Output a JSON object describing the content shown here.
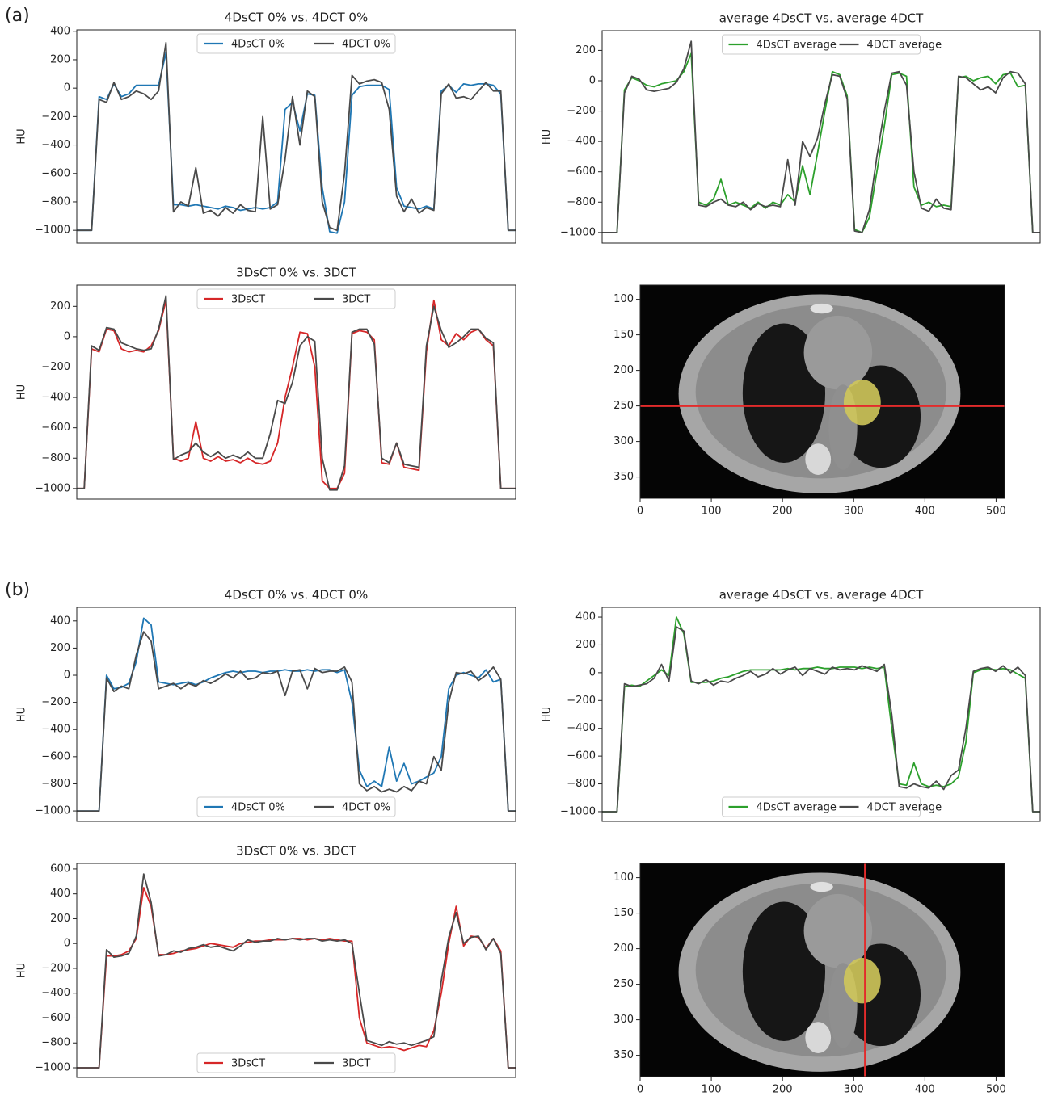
{
  "panels": [
    "(a)",
    "(b)"
  ],
  "chart_data": [
    {
      "type": "line",
      "title": "4DsCT 0% vs. 4DCT 0%",
      "ylabel": "HU",
      "legend": "upper center",
      "ylim": [
        -1090,
        410
      ],
      "yticks": [
        {
          "value": -1000,
          "label": "−1000"
        },
        {
          "value": -800,
          "label": "−800"
        },
        {
          "value": -600,
          "label": "−600"
        },
        {
          "value": -400,
          "label": "−400"
        },
        {
          "value": -200,
          "label": "−200"
        },
        0,
        200,
        400
      ],
      "series": [
        {
          "name": "4DsCT 0%",
          "color": "#1f77b4",
          "values": [
            -1000,
            -1000,
            -1000,
            -60,
            -80,
            30,
            -60,
            -40,
            20,
            20,
            20,
            20,
            250,
            -820,
            -820,
            -830,
            -820,
            -830,
            -840,
            -850,
            -830,
            -840,
            -860,
            -850,
            -840,
            -850,
            -840,
            -800,
            -150,
            -100,
            -300,
            -40,
            -50,
            -700,
            -1010,
            -1020,
            -800,
            -50,
            10,
            20,
            20,
            20,
            -10,
            -700,
            -830,
            -840,
            -850,
            -830,
            -850,
            -20,
            20,
            -30,
            30,
            20,
            30,
            30,
            20,
            -40,
            -1000,
            -1000
          ]
        },
        {
          "name": "4DCT 0%",
          "color": "#4a4a4a",
          "values": [
            -1000,
            -1000,
            -1000,
            -80,
            -100,
            40,
            -80,
            -60,
            -20,
            -40,
            -80,
            -20,
            320,
            -870,
            -800,
            -830,
            -560,
            -880,
            -860,
            -900,
            -840,
            -880,
            -820,
            -860,
            -870,
            -200,
            -850,
            -820,
            -500,
            -60,
            -400,
            -20,
            -60,
            -800,
            -980,
            -1000,
            -600,
            90,
            30,
            50,
            60,
            40,
            -150,
            -760,
            -870,
            -780,
            -880,
            -840,
            -860,
            -40,
            30,
            -70,
            -60,
            -80,
            -20,
            40,
            -20,
            -20,
            -1000,
            -1000
          ]
        }
      ]
    },
    {
      "type": "line",
      "title": "average 4DsCT vs. average 4DCT",
      "ylabel": "HU",
      "legend": "upper center",
      "ylim": [
        -1070,
        330
      ],
      "yticks": [
        {
          "value": -1000,
          "label": "−1000"
        },
        {
          "value": -800,
          "label": "−800"
        },
        {
          "value": -600,
          "label": "−600"
        },
        {
          "value": -400,
          "label": "−400"
        },
        {
          "value": -200,
          "label": "−200"
        },
        0,
        200
      ],
      "series": [
        {
          "name": "4DsCT average",
          "color": "#2ca02c",
          "values": [
            -1000,
            -1000,
            -1000,
            -60,
            20,
            0,
            -30,
            -40,
            -20,
            -10,
            0,
            60,
            180,
            -800,
            -820,
            -780,
            -650,
            -820,
            -800,
            -820,
            -840,
            -800,
            -840,
            -800,
            -820,
            -750,
            -800,
            -560,
            -750,
            -480,
            -200,
            60,
            40,
            -100,
            -980,
            -1000,
            -900,
            -600,
            -300,
            40,
            50,
            30,
            -700,
            -820,
            -800,
            -830,
            -820,
            -830,
            20,
            30,
            0,
            20,
            30,
            -20,
            40,
            50,
            -40,
            -30,
            -1000,
            -1000
          ]
        },
        {
          "name": "4DCT average",
          "color": "#4a4a4a",
          "values": [
            -1000,
            -1000,
            -1000,
            -80,
            30,
            10,
            -60,
            -70,
            -60,
            -50,
            -10,
            80,
            260,
            -820,
            -830,
            -800,
            -780,
            -820,
            -830,
            -800,
            -850,
            -810,
            -830,
            -820,
            -830,
            -520,
            -820,
            -400,
            -500,
            -380,
            -150,
            40,
            30,
            -120,
            -990,
            -1000,
            -850,
            -500,
            -200,
            50,
            60,
            -30,
            -600,
            -840,
            -860,
            -780,
            -840,
            -850,
            30,
            20,
            -20,
            -60,
            -40,
            -80,
            20,
            60,
            50,
            -20,
            -1000,
            -1000
          ]
        }
      ]
    },
    {
      "type": "line",
      "title": "3DsCT 0% vs. 3DCT",
      "ylabel": "HU",
      "legend": "upper center",
      "ylim": [
        -1070,
        340
      ],
      "yticks": [
        {
          "value": -1000,
          "label": "−1000"
        },
        {
          "value": -800,
          "label": "−800"
        },
        {
          "value": -600,
          "label": "−600"
        },
        {
          "value": -400,
          "label": "−400"
        },
        {
          "value": -200,
          "label": "−200"
        },
        0,
        200
      ],
      "series": [
        {
          "name": "3DsCT",
          "color": "#d62728",
          "values": [
            -1000,
            -1000,
            -80,
            -100,
            50,
            40,
            -80,
            -100,
            -90,
            -100,
            -60,
            40,
            240,
            -800,
            -820,
            -800,
            -560,
            -800,
            -820,
            -790,
            -820,
            -810,
            -830,
            -800,
            -830,
            -840,
            -820,
            -700,
            -400,
            -200,
            30,
            20,
            -200,
            -950,
            -1000,
            -1000,
            -900,
            20,
            40,
            30,
            -20,
            -830,
            -840,
            -700,
            -860,
            -870,
            -880,
            -100,
            240,
            -20,
            -60,
            20,
            -20,
            30,
            50,
            -20,
            -60,
            -1000,
            -1000,
            -1000
          ]
        },
        {
          "name": "3DCT",
          "color": "#4a4a4a",
          "values": [
            -1000,
            -1000,
            -60,
            -90,
            60,
            50,
            -40,
            -60,
            -80,
            -90,
            -80,
            50,
            270,
            -810,
            -780,
            -760,
            -700,
            -760,
            -790,
            -760,
            -800,
            -780,
            -800,
            -760,
            -800,
            -800,
            -640,
            -420,
            -440,
            -300,
            -60,
            0,
            -30,
            -800,
            -1010,
            -1010,
            -850,
            30,
            50,
            50,
            -50,
            -800,
            -830,
            -700,
            -840,
            -850,
            -860,
            -60,
            200,
            40,
            -70,
            -40,
            0,
            50,
            50,
            -10,
            -40,
            -1000,
            -1000,
            -1000
          ]
        }
      ]
    },
    {
      "type": "image",
      "xlim": [
        0,
        512
      ],
      "ylim": [
        380,
        80
      ],
      "xticks": [
        0,
        100,
        200,
        300,
        400,
        500
      ],
      "yticks": [
        100,
        150,
        200,
        250,
        300,
        350
      ],
      "crosshair": {
        "axis": "y",
        "value": 250,
        "color": "#e32b2b"
      }
    },
    {
      "type": "line",
      "title": "4DsCT 0% vs. 4DCT 0%",
      "ylabel": "HU",
      "legend": "lower center",
      "ylim": [
        -1077,
        500
      ],
      "yticks": [
        {
          "value": -1000,
          "label": "−1000"
        },
        {
          "value": -800,
          "label": "−800"
        },
        {
          "value": -600,
          "label": "−600"
        },
        {
          "value": -400,
          "label": "−400"
        },
        {
          "value": -200,
          "label": "−200"
        },
        0,
        200,
        400
      ],
      "series": [
        {
          "name": "4DsCT 0%",
          "color": "#1f77b4",
          "values": [
            -1000,
            -1000,
            -1000,
            -1000,
            0,
            -100,
            -90,
            -60,
            100,
            420,
            370,
            -50,
            -60,
            -70,
            -60,
            -50,
            -70,
            -50,
            -20,
            0,
            20,
            30,
            20,
            30,
            30,
            20,
            30,
            30,
            40,
            30,
            30,
            40,
            30,
            40,
            40,
            20,
            40,
            -200,
            -700,
            -820,
            -780,
            -820,
            -530,
            -780,
            -650,
            -800,
            -780,
            -750,
            -720,
            -600,
            -100,
            0,
            20,
            0,
            -20,
            40,
            -50,
            -30,
            -1000,
            -1000
          ]
        },
        {
          "name": "4DCT 0%",
          "color": "#4a4a4a",
          "values": [
            -1000,
            -1000,
            -1000,
            -1000,
            -20,
            -120,
            -80,
            -100,
            150,
            320,
            250,
            -100,
            -80,
            -60,
            -100,
            -60,
            -80,
            -40,
            -60,
            -30,
            10,
            -20,
            30,
            -30,
            -20,
            20,
            10,
            30,
            -150,
            30,
            40,
            -100,
            50,
            20,
            30,
            30,
            60,
            -50,
            -800,
            -850,
            -820,
            -860,
            -840,
            -860,
            -820,
            -850,
            -780,
            -800,
            -600,
            -700,
            -200,
            20,
            10,
            30,
            -40,
            0,
            60,
            -30,
            -1000,
            -1000
          ]
        }
      ]
    },
    {
      "type": "line",
      "title": "average 4DsCT vs. average 4DCT",
      "ylabel": "HU",
      "legend": "lower center",
      "ylim": [
        -1070,
        470
      ],
      "yticks": [
        {
          "value": -1000,
          "label": "−1000"
        },
        {
          "value": -800,
          "label": "−800"
        },
        {
          "value": -600,
          "label": "−600"
        },
        {
          "value": -400,
          "label": "−400"
        },
        {
          "value": -200,
          "label": "−200"
        },
        0,
        200,
        400
      ],
      "series": [
        {
          "name": "4DsCT average",
          "color": "#2ca02c",
          "values": [
            -1000,
            -1000,
            -1000,
            -100,
            -90,
            -100,
            -60,
            -20,
            20,
            -20,
            400,
            280,
            -70,
            -70,
            -70,
            -60,
            -40,
            -30,
            -10,
            10,
            20,
            20,
            20,
            20,
            20,
            30,
            20,
            30,
            30,
            40,
            30,
            30,
            40,
            40,
            40,
            30,
            40,
            30,
            40,
            -400,
            -800,
            -810,
            -650,
            -800,
            -820,
            -810,
            -820,
            -800,
            -750,
            -500,
            0,
            20,
            30,
            20,
            30,
            20,
            -10,
            -40,
            -1000,
            -1000
          ]
        },
        {
          "name": "4DCT average",
          "color": "#4a4a4a",
          "values": [
            -1000,
            -1000,
            -1000,
            -80,
            -100,
            -90,
            -80,
            -40,
            60,
            -60,
            330,
            300,
            -60,
            -80,
            -50,
            -90,
            -60,
            -70,
            -40,
            -20,
            10,
            -30,
            -10,
            30,
            -10,
            20,
            40,
            -20,
            30,
            10,
            -10,
            40,
            20,
            30,
            20,
            50,
            30,
            10,
            60,
            -300,
            -820,
            -830,
            -800,
            -820,
            -830,
            -780,
            -840,
            -740,
            -700,
            -400,
            10,
            30,
            40,
            10,
            50,
            0,
            40,
            -20,
            -1000,
            -1000
          ]
        }
      ]
    },
    {
      "type": "line",
      "title": "3DsCT 0% vs. 3DCT",
      "ylabel": "HU",
      "legend": "lower center",
      "ylim": [
        -1078,
        645
      ],
      "yticks": [
        {
          "value": -1000,
          "label": "−1000"
        },
        {
          "value": -800,
          "label": "−800"
        },
        {
          "value": -600,
          "label": "−600"
        },
        {
          "value": -400,
          "label": "−400"
        },
        {
          "value": -200,
          "label": "−200"
        },
        0,
        200,
        400,
        600
      ],
      "series": [
        {
          "name": "3DsCT",
          "color": "#d62728",
          "values": [
            -1000,
            -1000,
            -1000,
            -1000,
            -100,
            -100,
            -90,
            -60,
            40,
            450,
            300,
            -90,
            -90,
            -80,
            -60,
            -50,
            -40,
            -20,
            0,
            -10,
            -20,
            -30,
            0,
            10,
            20,
            20,
            30,
            30,
            30,
            40,
            40,
            30,
            40,
            30,
            40,
            30,
            20,
            20,
            -600,
            -800,
            -820,
            -840,
            -830,
            -840,
            -860,
            -840,
            -820,
            -830,
            -700,
            -400,
            0,
            300,
            -20,
            60,
            50,
            -40,
            40,
            -60,
            -1000,
            -1000
          ]
        },
        {
          "name": "3DCT",
          "color": "#4a4a4a",
          "values": [
            -1000,
            -1000,
            -1000,
            -1000,
            -50,
            -110,
            -100,
            -80,
            60,
            560,
            330,
            -100,
            -90,
            -60,
            -70,
            -40,
            -30,
            -10,
            -30,
            -20,
            -40,
            -60,
            -20,
            30,
            10,
            20,
            20,
            40,
            30,
            40,
            30,
            40,
            40,
            20,
            30,
            20,
            30,
            0,
            -400,
            -780,
            -800,
            -820,
            -790,
            -810,
            -800,
            -820,
            -800,
            -780,
            -750,
            -300,
            50,
            250,
            0,
            50,
            60,
            -50,
            40,
            -80,
            -1000,
            -1000
          ]
        }
      ]
    },
    {
      "type": "image",
      "xlim": [
        0,
        512
      ],
      "ylim": [
        380,
        80
      ],
      "xticks": [
        0,
        100,
        200,
        300,
        400,
        500
      ],
      "yticks": [
        100,
        150,
        200,
        250,
        300,
        350
      ],
      "crosshair": {
        "axis": "x",
        "value": 316,
        "color": "#e32b2b"
      }
    }
  ]
}
